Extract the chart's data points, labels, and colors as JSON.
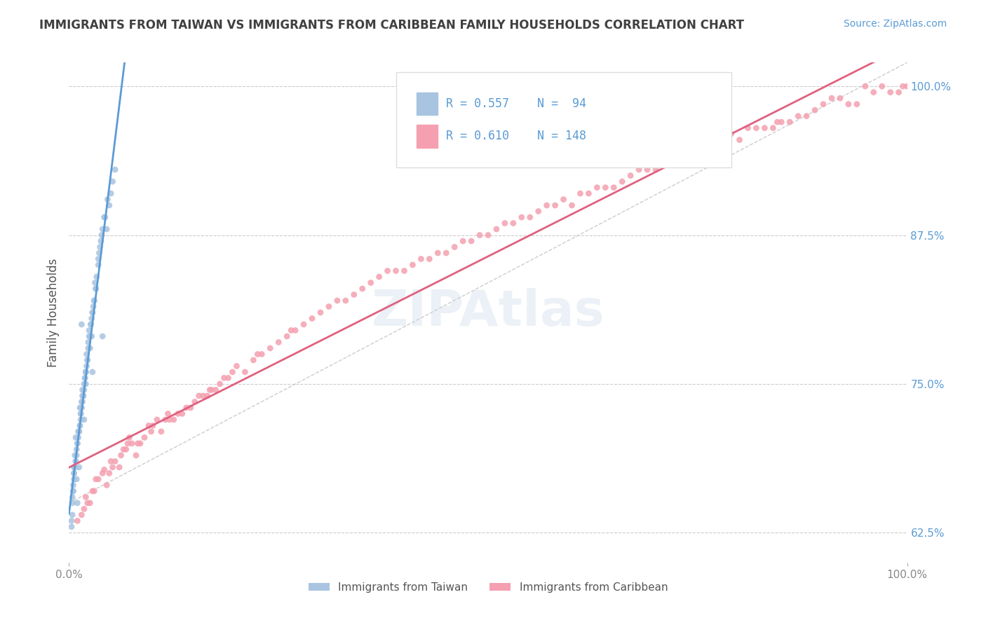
{
  "title": "IMMIGRANTS FROM TAIWAN VS IMMIGRANTS FROM CARIBBEAN FAMILY HOUSEHOLDS CORRELATION CHART",
  "source": "Source: ZipAtlas.com",
  "xlabel": "",
  "ylabel": "Family Households",
  "xticklabels": [
    "0.0%",
    "100.0%"
  ],
  "yticklabels_right": [
    "62.5%",
    "75.0%",
    "87.5%",
    "100.0%"
  ],
  "xlim": [
    0.0,
    100.0
  ],
  "ylim": [
    60.0,
    102.0
  ],
  "yticks_right": [
    62.5,
    75.0,
    87.5,
    100.0
  ],
  "taiwan_color": "#a8c4e0",
  "caribbean_color": "#f4a0b0",
  "taiwan_line_color": "#5b9bd5",
  "caribbean_line_color": "#e06080",
  "taiwan_R": 0.557,
  "taiwan_N": 94,
  "caribbean_R": 0.61,
  "caribbean_N": 148,
  "background_color": "#ffffff",
  "grid_color": "#cccccc",
  "title_color": "#404040",
  "source_color": "#5b9bd5",
  "legend_text_color": "#5b9bd5",
  "watermark": "ZIPAtlas",
  "taiwan_scatter_x": [
    1.2,
    0.8,
    1.5,
    2.0,
    1.8,
    2.5,
    3.0,
    2.8,
    3.5,
    4.0,
    1.0,
    1.3,
    0.5,
    0.7,
    1.1,
    2.2,
    1.6,
    0.9,
    3.2,
    2.7,
    4.5,
    5.0,
    1.4,
    0.6,
    2.0,
    1.7,
    0.4,
    3.8,
    2.3,
    1.9,
    0.3,
    4.2,
    1.0,
    2.6,
    0.8,
    1.5,
    3.0,
    2.1,
    1.3,
    0.9,
    2.8,
    1.6,
    0.5,
    4.8,
    2.4,
    1.2,
    0.6,
    3.3,
    2.0,
    1.8,
    3.7,
    0.7,
    1.4,
    2.5,
    0.4,
    5.5,
    1.1,
    2.9,
    1.7,
    3.1,
    0.8,
    2.3,
    1.5,
    4.0,
    0.6,
    1.9,
    3.5,
    2.2,
    0.9,
    1.3,
    0.5,
    2.7,
    1.0,
    4.3,
    1.6,
    2.4,
    0.7,
    3.6,
    1.8,
    2.0,
    0.4,
    5.2,
    1.2,
    3.9,
    2.1,
    1.4,
    0.6,
    2.6,
    1.7,
    4.6,
    0.3,
    1.5,
    2.8,
    3.2
  ],
  "taiwan_scatter_y": [
    68.0,
    70.5,
    80.0,
    75.0,
    72.0,
    78.0,
    82.0,
    76.0,
    85.0,
    79.0,
    65.0,
    73.0,
    66.0,
    69.0,
    71.0,
    77.0,
    74.0,
    67.0,
    83.0,
    79.0,
    88.0,
    91.0,
    72.5,
    68.0,
    76.0,
    74.0,
    64.0,
    87.0,
    78.0,
    75.5,
    63.0,
    89.0,
    70.0,
    80.0,
    68.5,
    73.0,
    82.0,
    76.5,
    71.5,
    69.5,
    81.0,
    74.5,
    66.5,
    90.0,
    79.0,
    71.0,
    67.5,
    84.0,
    76.0,
    74.5,
    86.5,
    68.0,
    72.0,
    79.0,
    65.5,
    93.0,
    70.5,
    81.5,
    74.0,
    83.5,
    68.5,
    78.5,
    73.5,
    88.0,
    67.0,
    75.5,
    85.5,
    77.0,
    69.0,
    71.5,
    66.0,
    80.5,
    70.0,
    89.0,
    73.5,
    79.5,
    68.0,
    86.0,
    75.0,
    76.0,
    65.0,
    92.0,
    71.0,
    87.5,
    77.5,
    72.5,
    67.5,
    80.0,
    74.0,
    90.5,
    63.5,
    73.0,
    81.0,
    83.0
  ],
  "caribbean_scatter_x": [
    1.5,
    2.0,
    3.5,
    5.0,
    7.0,
    10.0,
    12.0,
    15.0,
    8.0,
    4.5,
    6.0,
    9.0,
    11.0,
    14.0,
    3.0,
    2.5,
    1.8,
    4.0,
    6.5,
    8.5,
    13.0,
    16.0,
    5.5,
    7.5,
    9.5,
    11.5,
    18.0,
    20.0,
    22.0,
    25.0,
    28.0,
    30.0,
    35.0,
    40.0,
    45.0,
    50.0,
    55.0,
    60.0,
    65.0,
    3.2,
    4.8,
    7.2,
    10.5,
    13.5,
    17.0,
    21.0,
    24.0,
    27.0,
    32.0,
    37.0,
    42.0,
    47.0,
    52.0,
    57.0,
    62.0,
    67.0,
    70.0,
    75.0,
    80.0,
    85.0,
    90.0,
    95.0,
    1.0,
    2.8,
    5.2,
    8.2,
    12.5,
    16.5,
    19.0,
    23.0,
    26.0,
    31.0,
    36.0,
    41.0,
    46.0,
    48.0,
    53.0,
    58.0,
    63.0,
    68.0,
    72.0,
    77.0,
    82.0,
    87.0,
    92.0,
    97.0,
    6.8,
    9.8,
    14.5,
    19.5,
    29.0,
    34.0,
    39.0,
    44.0,
    49.0,
    54.0,
    59.0,
    64.0,
    69.0,
    73.0,
    78.0,
    83.0,
    88.0,
    93.0,
    98.0,
    4.2,
    11.8,
    15.5,
    33.0,
    43.0,
    61.0,
    71.0,
    76.0,
    81.0,
    86.0,
    91.0,
    96.0,
    18.5,
    38.0,
    56.0,
    66.0,
    74.0,
    79.0,
    84.0,
    89.0,
    94.0,
    99.0,
    2.2,
    6.2,
    16.8,
    26.5,
    51.0,
    74.5,
    84.5,
    99.5,
    17.5,
    22.5,
    100.0
  ],
  "caribbean_scatter_y": [
    64.0,
    65.5,
    67.0,
    68.5,
    70.0,
    71.5,
    72.0,
    73.5,
    69.0,
    66.5,
    68.0,
    70.5,
    71.0,
    73.0,
    66.0,
    65.0,
    64.5,
    67.5,
    69.5,
    70.0,
    72.5,
    74.0,
    68.5,
    70.0,
    71.5,
    72.0,
    75.0,
    76.5,
    77.0,
    78.5,
    80.0,
    81.0,
    83.0,
    84.5,
    86.0,
    87.5,
    89.0,
    90.0,
    91.5,
    67.0,
    67.5,
    70.5,
    72.0,
    72.5,
    74.5,
    76.0,
    78.0,
    79.5,
    82.0,
    84.0,
    85.5,
    87.0,
    88.5,
    90.0,
    91.0,
    92.5,
    93.0,
    94.5,
    95.5,
    97.0,
    98.5,
    100.0,
    63.5,
    66.0,
    68.0,
    70.0,
    72.0,
    74.0,
    75.5,
    77.5,
    79.0,
    81.5,
    83.5,
    85.0,
    86.5,
    87.0,
    88.5,
    90.0,
    91.5,
    93.0,
    94.0,
    95.0,
    96.5,
    97.5,
    99.0,
    100.0,
    69.5,
    71.0,
    73.0,
    76.0,
    80.5,
    82.5,
    84.5,
    86.0,
    87.5,
    89.0,
    90.5,
    91.5,
    93.0,
    93.5,
    95.0,
    96.5,
    97.5,
    98.5,
    99.5,
    67.8,
    72.5,
    74.0,
    82.0,
    85.5,
    91.0,
    94.0,
    95.5,
    96.5,
    97.0,
    99.0,
    99.5,
    75.5,
    84.5,
    89.5,
    92.0,
    95.0,
    96.0,
    96.5,
    98.0,
    98.5,
    99.5,
    65.0,
    69.0,
    74.5,
    79.5,
    88.0,
    94.5,
    97.0,
    100.0,
    74.5,
    77.5,
    100.0
  ]
}
